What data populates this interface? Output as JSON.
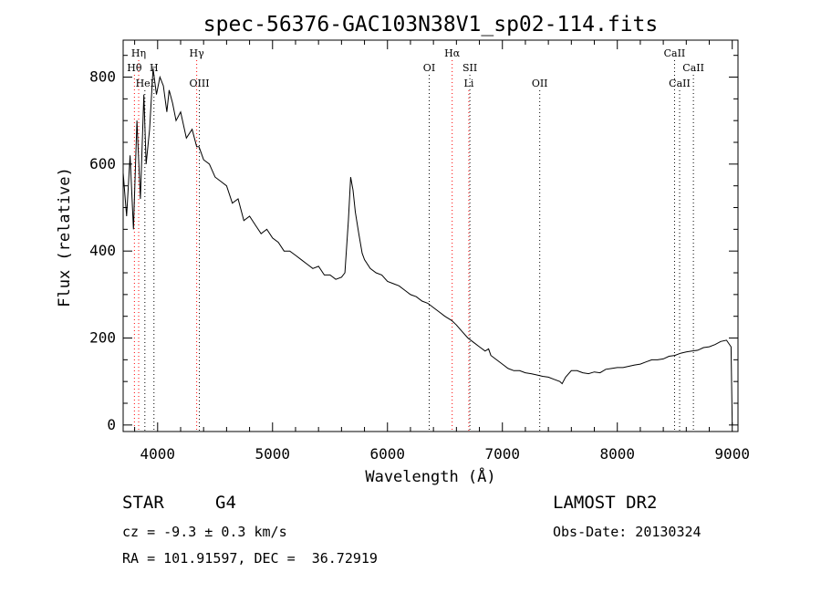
{
  "chart_data": {
    "type": "line",
    "title": "spec-56376-GAC103N38V1_sp02-114.fits",
    "xlabel": "Wavelength (Å)",
    "ylabel": "Flux (relative)",
    "xlim": [
      3700,
      9050
    ],
    "ylim": [
      -15,
      885
    ],
    "xticks": [
      4000,
      5000,
      6000,
      7000,
      8000,
      9000
    ],
    "yticks": [
      0,
      200,
      400,
      600,
      800
    ],
    "series": [
      {
        "x": [
          3700,
          3730,
          3760,
          3790,
          3820,
          3850,
          3880,
          3900,
          3930,
          3960,
          3990,
          4020,
          4050,
          4080,
          4100,
          4130,
          4160,
          4200,
          4250,
          4300,
          4340,
          4360,
          4400,
          4450,
          4500,
          4550,
          4600,
          4650,
          4700,
          4750,
          4800,
          4850,
          4900,
          4950,
          5000,
          5050,
          5100,
          5150,
          5200,
          5250,
          5300,
          5350,
          5400,
          5450,
          5500,
          5550,
          5600,
          5630,
          5660,
          5680,
          5700,
          5720,
          5750,
          5780,
          5800,
          5850,
          5900,
          5950,
          6000,
          6050,
          6100,
          6150,
          6200,
          6250,
          6300,
          6350,
          6400,
          6450,
          6500,
          6560,
          6600,
          6650,
          6700,
          6750,
          6800,
          6850,
          6880,
          6900,
          6950,
          7000,
          7050,
          7100,
          7150,
          7200,
          7250,
          7300,
          7350,
          7400,
          7450,
          7500,
          7520,
          7550,
          7600,
          7650,
          7700,
          7750,
          7800,
          7850,
          7900,
          7950,
          8000,
          8050,
          8100,
          8150,
          8200,
          8250,
          8300,
          8350,
          8400,
          8450,
          8500,
          8550,
          8600,
          8650,
          8700,
          8750,
          8800,
          8850,
          8900,
          8950,
          8990,
          9000
        ],
        "values": [
          580,
          480,
          620,
          450,
          700,
          520,
          760,
          600,
          680,
          820,
          760,
          800,
          780,
          720,
          770,
          740,
          700,
          720,
          660,
          680,
          640,
          640,
          610,
          600,
          570,
          560,
          550,
          510,
          520,
          470,
          480,
          460,
          440,
          450,
          430,
          420,
          400,
          400,
          390,
          380,
          370,
          360,
          365,
          345,
          345,
          335,
          340,
          350,
          470,
          570,
          540,
          490,
          440,
          395,
          380,
          360,
          350,
          345,
          330,
          325,
          320,
          310,
          300,
          295,
          285,
          280,
          270,
          260,
          250,
          240,
          230,
          215,
          200,
          190,
          180,
          170,
          175,
          160,
          150,
          140,
          130,
          125,
          125,
          120,
          118,
          115,
          112,
          110,
          105,
          100,
          95,
          110,
          125,
          125,
          120,
          118,
          122,
          120,
          128,
          130,
          132,
          132,
          135,
          138,
          140,
          145,
          150,
          150,
          152,
          158,
          160,
          165,
          168,
          170,
          172,
          178,
          180,
          185,
          192,
          195,
          180,
          0
        ]
      }
    ],
    "spectral_lines": [
      {
        "label": "Hη",
        "x": 3835,
        "row": 1,
        "style": "dotted-red"
      },
      {
        "label": "Hθ",
        "x": 3798,
        "row": 2,
        "style": "dotted-red"
      },
      {
        "label": "H",
        "x": 3968,
        "row": 2,
        "style": "dotted-black"
      },
      {
        "label": "HeI",
        "x": 3889,
        "row": 3,
        "style": "dotted-black"
      },
      {
        "label": "Hγ",
        "x": 4340,
        "row": 1,
        "style": "dotted-red"
      },
      {
        "label": "OIII",
        "x": 4363,
        "row": 3,
        "style": "dotted-black"
      },
      {
        "label": "OI",
        "x": 6363,
        "row": 2,
        "style": "dotted-black"
      },
      {
        "label": "Hα",
        "x": 6563,
        "row": 1,
        "style": "dotted-red"
      },
      {
        "label": "SII",
        "x": 6717,
        "row": 2,
        "style": "dotted-black"
      },
      {
        "label": "Li",
        "x": 6708,
        "row": 3,
        "style": "dotted-red"
      },
      {
        "label": "OII",
        "x": 7325,
        "row": 3,
        "style": "dotted-black"
      },
      {
        "label": "CaII",
        "x": 8498,
        "row": 1,
        "style": "dotted-black"
      },
      {
        "label": "CaII",
        "x": 8662,
        "row": 2,
        "style": "dotted-black"
      },
      {
        "label": "CaII",
        "x": 8542,
        "row": 3,
        "style": "dotted-black"
      }
    ],
    "grid": false,
    "legend": "none",
    "colors": {
      "line": "#000000",
      "balmer": "#ff0000",
      "other": "#000000"
    }
  },
  "info": {
    "object_type": "STAR",
    "subclass": "G4",
    "survey": "LAMOST DR2",
    "cz": "cz = -9.3 ± 0.3 km/s",
    "obs_date": "Obs-Date: 20130324",
    "coords": "RA = 101.91597, DEC =  36.72919"
  }
}
